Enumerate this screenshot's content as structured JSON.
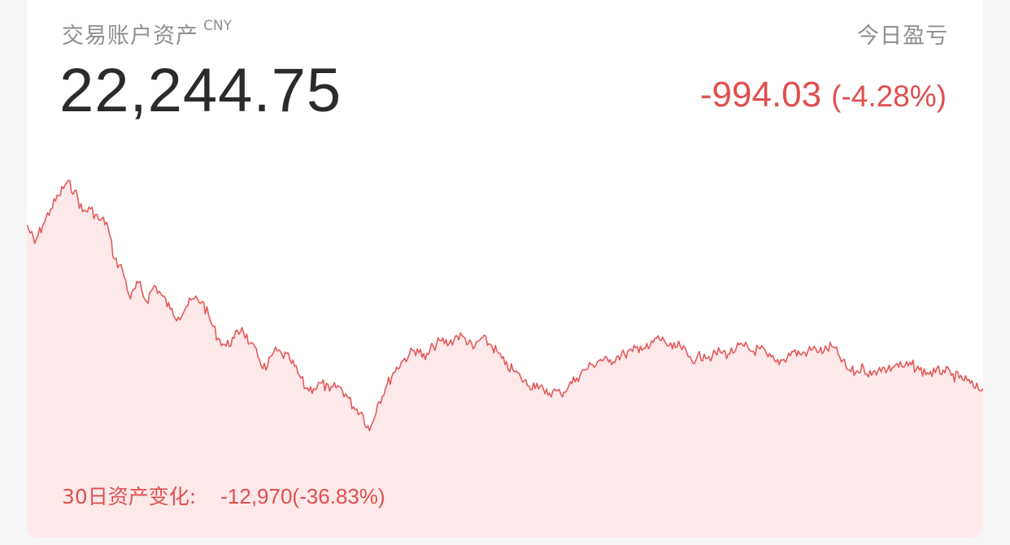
{
  "account": {
    "assets_label": "交易账户资产",
    "currency": "CNY",
    "assets_value": "22,244.75"
  },
  "daily_pnl": {
    "label": "今日盈亏",
    "value": "-994.03",
    "percent": "(-4.28%)"
  },
  "period_change": {
    "label": "30日资产变化:",
    "value": "-12,970(-36.83%)"
  },
  "colors": {
    "loss_red": "#e04f4f",
    "line": "#e35a5a",
    "fill": "#fde9e9",
    "label_gray": "#8e8e93",
    "value_dark": "#2b2b2b"
  },
  "chart_data": {
    "type": "area",
    "title": "",
    "xlabel": "",
    "ylabel": "",
    "x": [
      0,
      1,
      2,
      3,
      4,
      5,
      6,
      7,
      8,
      9,
      10,
      11,
      12,
      13,
      14,
      15,
      16,
      17,
      18,
      19,
      20,
      21,
      22,
      23,
      24,
      25,
      26,
      27,
      28,
      29,
      30,
      31,
      32,
      33,
      34,
      35,
      36,
      37,
      38,
      39,
      40,
      41,
      42,
      43,
      44,
      45,
      46,
      47,
      48,
      49,
      50,
      51,
      52,
      53,
      54,
      55,
      56,
      57,
      58,
      59,
      60,
      61,
      62,
      63,
      64,
      65,
      66,
      67,
      68,
      69,
      70,
      71,
      72,
      73,
      74,
      75,
      76,
      77,
      78,
      79,
      80,
      81,
      82,
      83,
      84,
      85,
      86,
      87,
      88,
      89,
      90,
      91,
      92,
      93,
      94,
      95,
      96,
      97,
      98,
      99,
      100,
      101,
      102,
      103,
      104,
      105,
      106,
      107,
      108,
      109,
      110,
      111,
      112,
      113,
      114,
      115,
      116,
      117,
      118,
      119,
      120
    ],
    "series": [
      {
        "values": [
          0.81,
          0.74,
          0.81,
          0.87,
          0.92,
          0.97,
          0.94,
          0.86,
          0.87,
          0.83,
          0.82,
          0.68,
          0.64,
          0.53,
          0.59,
          0.52,
          0.58,
          0.54,
          0.49,
          0.46,
          0.5,
          0.53,
          0.52,
          0.45,
          0.38,
          0.35,
          0.38,
          0.42,
          0.36,
          0.31,
          0.26,
          0.33,
          0.32,
          0.3,
          0.25,
          0.19,
          0.19,
          0.21,
          0.18,
          0.2,
          0.17,
          0.12,
          0.1,
          0.03,
          0.13,
          0.19,
          0.25,
          0.29,
          0.32,
          0.34,
          0.3,
          0.35,
          0.37,
          0.36,
          0.39,
          0.38,
          0.34,
          0.38,
          0.36,
          0.33,
          0.28,
          0.26,
          0.23,
          0.2,
          0.21,
          0.17,
          0.18,
          0.17,
          0.2,
          0.23,
          0.26,
          0.28,
          0.3,
          0.29,
          0.31,
          0.32,
          0.33,
          0.35,
          0.34,
          0.38,
          0.37,
          0.34,
          0.35,
          0.31,
          0.3,
          0.32,
          0.31,
          0.33,
          0.32,
          0.34,
          0.35,
          0.33,
          0.34,
          0.31,
          0.29,
          0.3,
          0.33,
          0.32,
          0.33,
          0.34,
          0.33,
          0.35,
          0.31,
          0.26,
          0.25,
          0.27,
          0.24,
          0.27,
          0.26,
          0.28,
          0.27,
          0.28,
          0.26,
          0.25,
          0.25,
          0.26,
          0.24,
          0.23,
          0.22,
          0.19,
          0.19
        ]
      }
    ],
    "ylim": [
      0,
      1
    ],
    "grid": false,
    "legend": "none"
  }
}
